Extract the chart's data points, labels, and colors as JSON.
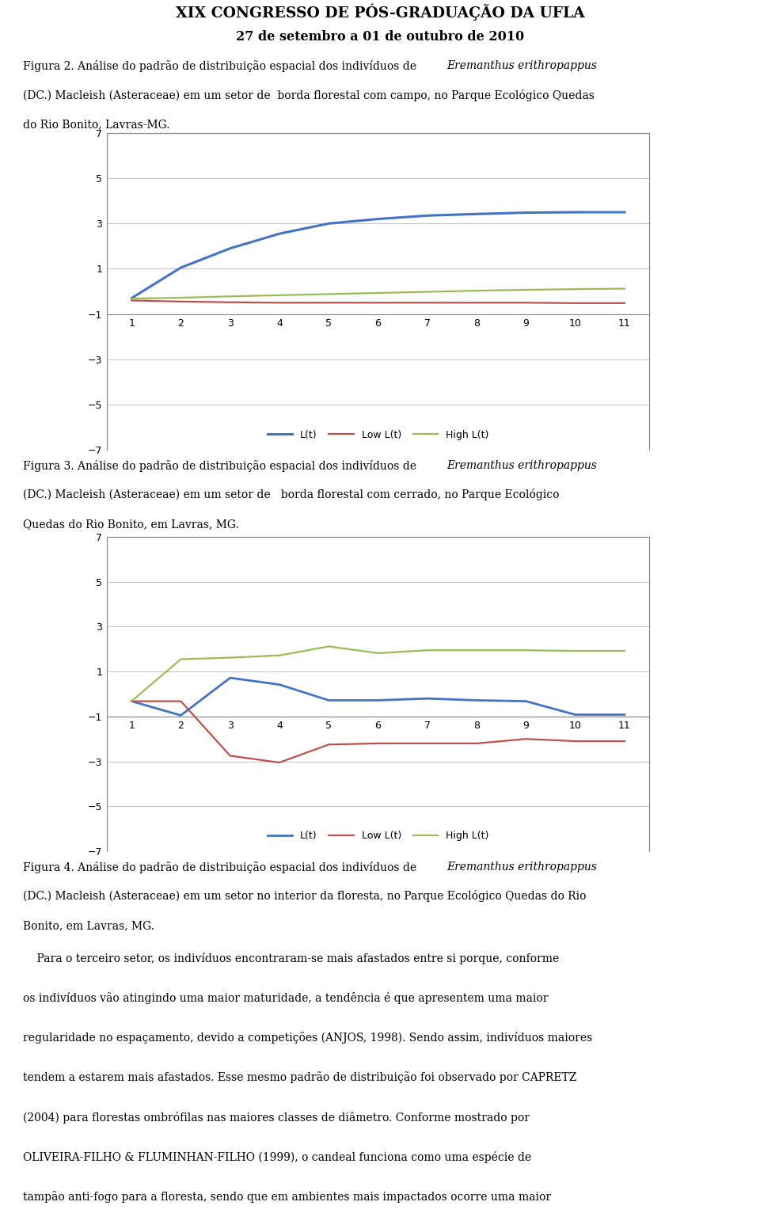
{
  "header_line1": "XIX CONGRESSO DE PÓS-GRADUAÇÃO DA UFLA",
  "header_line2": "27 de setembro a 01 de outubro de 2010",
  "chart1_x": [
    1,
    2,
    3,
    4,
    5,
    6,
    7,
    8,
    9,
    10,
    11
  ],
  "chart1_Lt": [
    -0.3,
    1.05,
    1.9,
    2.55,
    3.0,
    3.2,
    3.35,
    3.42,
    3.48,
    3.5,
    3.5
  ],
  "chart1_LowLt": [
    -0.4,
    -0.45,
    -0.48,
    -0.5,
    -0.5,
    -0.5,
    -0.5,
    -0.5,
    -0.5,
    -0.52,
    -0.52
  ],
  "chart1_HighLt": [
    -0.32,
    -0.28,
    -0.22,
    -0.17,
    -0.12,
    -0.07,
    -0.02,
    0.03,
    0.07,
    0.1,
    0.12
  ],
  "chart2_x": [
    1,
    2,
    3,
    4,
    5,
    6,
    7,
    8,
    9,
    10,
    11
  ],
  "chart2_Lt": [
    -0.32,
    -0.95,
    0.72,
    0.42,
    -0.28,
    -0.28,
    -0.2,
    -0.28,
    -0.32,
    -0.92,
    -0.92
  ],
  "chart2_LowLt": [
    -0.32,
    -0.32,
    -2.75,
    -3.05,
    -2.25,
    -2.2,
    -2.2,
    -2.2,
    -2.0,
    -2.1,
    -2.1
  ],
  "chart2_HighLt": [
    -0.32,
    1.55,
    1.62,
    1.72,
    2.12,
    1.82,
    1.95,
    1.95,
    1.95,
    1.92,
    1.92
  ],
  "ylim": [
    -7,
    7
  ],
  "yticks": [
    -7,
    -5,
    -3,
    -1,
    1,
    3,
    5,
    7
  ],
  "xlim": [
    0.5,
    11.5
  ],
  "xticks": [
    1,
    2,
    3,
    4,
    5,
    6,
    7,
    8,
    9,
    10,
    11
  ],
  "color_Lt": "#4472C4",
  "color_LowLt": "#C0504D",
  "color_HighLt": "#9BBB59",
  "color_grid": "#BFBFBF",
  "background": "#FFFFFF"
}
